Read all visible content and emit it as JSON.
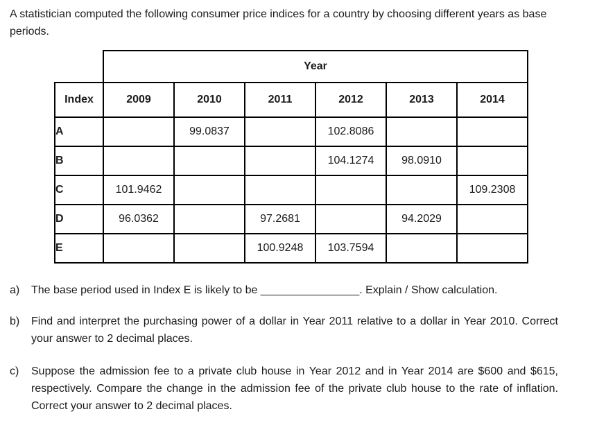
{
  "intro": "A statistician computed the following consumer price indices for a country by choosing different years as base periods.",
  "table": {
    "year_header": "Year",
    "index_header": "Index",
    "columns": [
      "2009",
      "2010",
      "2011",
      "2012",
      "2013",
      "2014"
    ],
    "rows": [
      {
        "label": "A",
        "values": [
          "",
          "99.0837",
          "",
          "102.8086",
          "",
          ""
        ]
      },
      {
        "label": "B",
        "values": [
          "",
          "",
          "",
          "104.1274",
          "98.0910",
          ""
        ]
      },
      {
        "label": "C",
        "values": [
          "101.9462",
          "",
          "",
          "",
          "",
          "109.2308"
        ]
      },
      {
        "label": "D",
        "values": [
          "96.0362",
          "",
          "97.2681",
          "",
          "94.2029",
          ""
        ]
      },
      {
        "label": "E",
        "values": [
          "",
          "",
          "100.9248",
          "103.7594",
          "",
          ""
        ]
      }
    ]
  },
  "questions": [
    {
      "label": "a)",
      "text": "The base period used in Index E is likely to be  ________________. Explain / Show calculation."
    },
    {
      "label": "b)",
      "text": "Find and interpret the purchasing power of a dollar in Year 2011 relative to a dollar in Year 2010. Correct your answer to 2 decimal places."
    },
    {
      "label": "c)",
      "text": "Suppose the admission fee to a private club house in Year 2012 and in Year 2014 are $600 and $615, respectively. Compare the change in the admission fee of the private club house to the rate of inflation. Correct your answer to 2 decimal places."
    }
  ]
}
